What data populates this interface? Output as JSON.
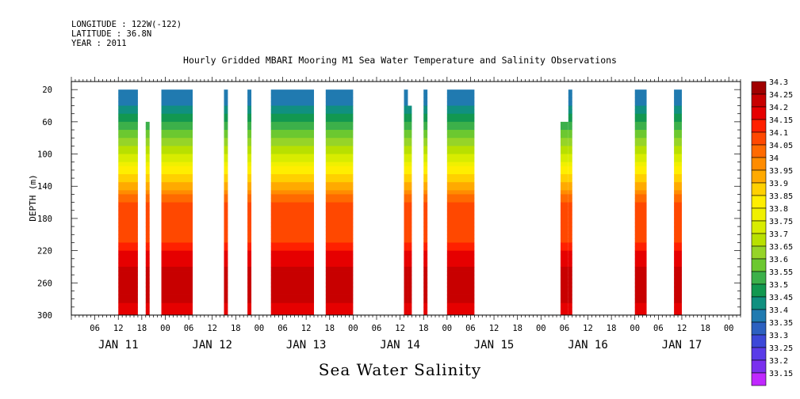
{
  "header": {
    "longitude": "LONGITUDE : 122W(-122)",
    "latitude": "LATITUDE : 36.8N",
    "year": "YEAR : 2011"
  },
  "chart_data": {
    "type": "heatmap",
    "title": "Hourly Gridded MBARI Mooring M1 Sea Water Temperature and Salinity Observations",
    "bottom_title": "Sea Water Salinity",
    "ylabel": "DEPTH (m)",
    "xlabel": "",
    "x_hour_ticks": [
      "06",
      "12",
      "18",
      "00",
      "06",
      "12",
      "18",
      "00",
      "06",
      "12",
      "18",
      "00",
      "06",
      "12",
      "18",
      "00",
      "06",
      "12",
      "18",
      "00",
      "06",
      "12",
      "18",
      "00",
      "06",
      "12",
      "18",
      "00"
    ],
    "day_labels": [
      "JAN 11",
      "JAN 12",
      "JAN 13",
      "JAN 14",
      "JAN 15",
      "JAN 16",
      "JAN 17"
    ],
    "y_ticks": [
      20,
      60,
      100,
      140,
      180,
      220,
      260,
      300
    ],
    "ylim": [
      300,
      10
    ],
    "x_start": "2011-01-11 00:00",
    "x_end": "2011-01-18 03:00",
    "colorbar_levels": [
      "34.3",
      "34.25",
      "34.2",
      "34.15",
      "34.1",
      "34.05",
      "34",
      "33.95",
      "33.9",
      "33.85",
      "33.8",
      "33.75",
      "33.7",
      "33.65",
      "33.6",
      "33.55",
      "33.5",
      "33.45",
      "33.4",
      "33.35",
      "33.3",
      "33.25",
      "33.2",
      "33.15"
    ],
    "colorbar_colors": [
      "#a00000",
      "#c80000",
      "#e60000",
      "#ff2000",
      "#ff4800",
      "#ff6a00",
      "#ff8c00",
      "#ffaa00",
      "#ffd000",
      "#ffee00",
      "#f0f000",
      "#d8ec00",
      "#b8e000",
      "#96d428",
      "#6cc830",
      "#3cb04a",
      "#129850",
      "#109080",
      "#207ab0",
      "#2c60c0",
      "#3c48d8",
      "#5a3ce8",
      "#7a30ee",
      "#c028ff"
    ],
    "salinity_profile": [
      {
        "depth": 20,
        "value": 33.4
      },
      {
        "depth": 40,
        "value": 33.45
      },
      {
        "depth": 60,
        "value": 33.55
      },
      {
        "depth": 80,
        "value": 33.65
      },
      {
        "depth": 100,
        "value": 33.75
      },
      {
        "depth": 120,
        "value": 33.87
      },
      {
        "depth": 140,
        "value": 33.98
      },
      {
        "depth": 160,
        "value": 34.1
      },
      {
        "depth": 200,
        "value": 34.1
      },
      {
        "depth": 220,
        "value": 34.2
      },
      {
        "depth": 240,
        "value": 34.25
      },
      {
        "depth": 280,
        "value": 34.27
      },
      {
        "depth": 300,
        "value": 34.2
      }
    ],
    "data_blocks": [
      {
        "start": "2011-01-11 12:00",
        "end": "2011-01-11 17:00",
        "top_depth": 20
      },
      {
        "start": "2011-01-11 19:00",
        "end": "2011-01-11 20:00",
        "top_depth": 60
      },
      {
        "start": "2011-01-11 23:00",
        "end": "2011-01-12 07:00",
        "top_depth": 20
      },
      {
        "start": "2011-01-12 15:00",
        "end": "2011-01-12 16:00",
        "top_depth": 20
      },
      {
        "start": "2011-01-12 21:00",
        "end": "2011-01-12 22:00",
        "top_depth": 20
      },
      {
        "start": "2011-01-13 03:00",
        "end": "2011-01-13 14:00",
        "top_depth": 20
      },
      {
        "start": "2011-01-13 17:00",
        "end": "2011-01-14 00:00",
        "top_depth": 20
      },
      {
        "start": "2011-01-14 13:00",
        "end": "2011-01-14 14:00",
        "top_depth": 20
      },
      {
        "start": "2011-01-14 14:00",
        "end": "2011-01-14 15:00",
        "top_depth": 40
      },
      {
        "start": "2011-01-14 18:00",
        "end": "2011-01-14 19:00",
        "top_depth": 20
      },
      {
        "start": "2011-01-15 00:00",
        "end": "2011-01-15 07:00",
        "top_depth": 20
      },
      {
        "start": "2011-01-16 05:00",
        "end": "2011-01-16 07:00",
        "top_depth": 60
      },
      {
        "start": "2011-01-16 07:00",
        "end": "2011-01-16 08:00",
        "top_depth": 20
      },
      {
        "start": "2011-01-17 00:00",
        "end": "2011-01-17 03:00",
        "top_depth": 20
      },
      {
        "start": "2011-01-17 10:00",
        "end": "2011-01-17 12:00",
        "top_depth": 20
      }
    ]
  }
}
